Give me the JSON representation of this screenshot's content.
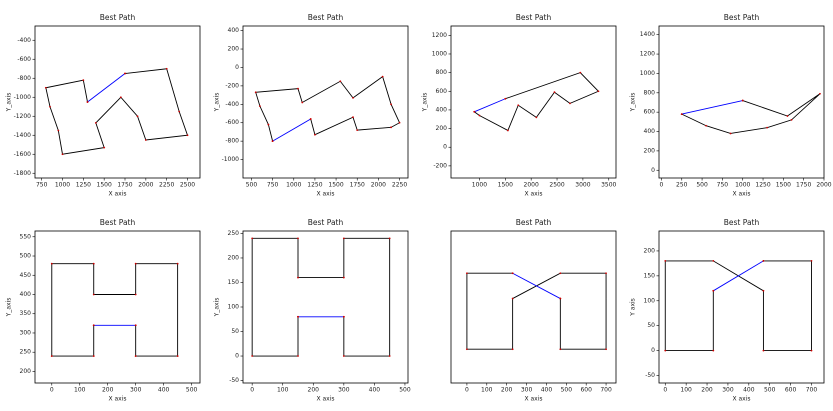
{
  "chart_data": [
    {
      "type": "line",
      "title": "Best Path",
      "xlabel": "X axis",
      "ylabel": "Y_axis",
      "xlim": [
        670,
        2650
      ],
      "ylim": [
        -1850,
        -250
      ],
      "xticks": [
        750,
        1000,
        1250,
        1500,
        1750,
        2000,
        2250,
        2500
      ],
      "yticks": [
        -400,
        -600,
        -800,
        -1000,
        -1200,
        -1400,
        -1600,
        -1800
      ],
      "marker_color": "#cc0000",
      "series": [
        {
          "color": "#000000",
          "x": [
            1300,
            1250,
            800,
            850,
            950,
            1000,
            1500,
            1400,
            1700,
            1900,
            2000,
            2500,
            2400,
            2250,
            1750
          ],
          "values": [
            -1050,
            -820,
            -900,
            -1100,
            -1350,
            -1600,
            -1530,
            -1270,
            -1000,
            -1200,
            -1450,
            -1400,
            -1150,
            -700,
            -750
          ]
        },
        {
          "color": "#0000ff",
          "x": [
            1750,
            1300
          ],
          "values": [
            -750,
            -1050
          ]
        }
      ]
    },
    {
      "type": "line",
      "title": "Best Path",
      "xlabel": "X axis",
      "ylabel": "Y_axis",
      "xlim": [
        400,
        2350
      ],
      "ylim": [
        -1200,
        450
      ],
      "xticks": [
        500,
        750,
        1000,
        1250,
        1500,
        1750,
        2000,
        2250
      ],
      "yticks": [
        400,
        200,
        0,
        -200,
        -400,
        -600,
        -800,
        -1000
      ],
      "marker_color": "#cc0000",
      "series": [
        {
          "color": "#000000",
          "x": [
            1200,
            1250,
            1700,
            1750,
            2150,
            2250,
            2150,
            2050,
            1700,
            1550,
            1100,
            1050,
            550,
            600,
            700,
            750
          ],
          "values": [
            -560,
            -730,
            -540,
            -680,
            -650,
            -600,
            -400,
            -100,
            -330,
            -150,
            -380,
            -230,
            -270,
            -420,
            -620,
            -800
          ]
        },
        {
          "color": "#0000ff",
          "x": [
            750,
            1200
          ],
          "values": [
            -800,
            -560
          ]
        }
      ]
    },
    {
      "type": "line",
      "title": "Best Path",
      "xlabel": "X axis",
      "ylabel": "Y_axis",
      "xlim": [
        450,
        3640
      ],
      "ylim": [
        -330,
        1300
      ],
      "xticks": [
        1000,
        1500,
        2000,
        2500,
        3000,
        3500
      ],
      "yticks": [
        -200,
        0,
        200,
        400,
        600,
        800,
        1000,
        1200
      ],
      "marker_color": "#cc0000",
      "series": [
        {
          "color": "#000000",
          "x": [
            1500,
            2950,
            3300,
            2750,
            2450,
            2100,
            1750,
            1550,
            1000,
            900
          ],
          "values": [
            520,
            800,
            600,
            470,
            590,
            320,
            450,
            180,
            340,
            380
          ]
        },
        {
          "color": "#0000ff",
          "x": [
            900,
            1500
          ],
          "values": [
            380,
            520
          ]
        }
      ]
    },
    {
      "type": "line",
      "title": "Best Path",
      "xlabel": "X axis",
      "ylabel": "Y_axis",
      "xlim": [
        -30,
        2000
      ],
      "ylim": [
        -80,
        1490
      ],
      "xticks": [
        0,
        250,
        500,
        750,
        1000,
        1250,
        1500,
        1750,
        2000
      ],
      "yticks": [
        0,
        200,
        400,
        600,
        800,
        1000,
        1200,
        1400
      ],
      "marker_color": "#cc0000",
      "series": [
        {
          "color": "#000000",
          "x": [
            1000,
            1550,
            1950,
            1600,
            1300,
            850,
            550,
            250
          ],
          "values": [
            720,
            560,
            790,
            520,
            440,
            380,
            460,
            580
          ]
        },
        {
          "color": "#0000ff",
          "x": [
            250,
            1000
          ],
          "values": [
            580,
            720
          ]
        }
      ]
    },
    {
      "type": "line",
      "title": "Best Path",
      "xlabel": "X axis",
      "ylabel": "Y_axis",
      "xlim": [
        -60,
        530
      ],
      "ylim": [
        170,
        565
      ],
      "xticks": [
        0,
        100,
        200,
        300,
        400,
        500
      ],
      "yticks": [
        200,
        250,
        300,
        350,
        400,
        450,
        500,
        550
      ],
      "marker_color": "#cc0000",
      "series": [
        {
          "color": "#000000",
          "x": [
            150,
            150,
            0,
            0,
            150,
            150,
            300,
            300,
            450,
            450,
            300,
            300
          ],
          "values": [
            320,
            240,
            240,
            480,
            480,
            400,
            400,
            480,
            480,
            240,
            240,
            320
          ]
        },
        {
          "color": "#0000ff",
          "x": [
            300,
            150
          ],
          "values": [
            320,
            320
          ]
        }
      ]
    },
    {
      "type": "line",
      "title": "Best Path",
      "xlabel": "X axis",
      "ylabel": "Y_axis",
      "xlim": [
        -30,
        510
      ],
      "ylim": [
        -55,
        255
      ],
      "xticks": [
        0,
        100,
        200,
        300,
        400,
        500
      ],
      "yticks": [
        -50,
        0,
        50,
        100,
        150,
        200,
        250
      ],
      "marker_color": "#cc0000",
      "series": [
        {
          "color": "#000000",
          "x": [
            150,
            150,
            0,
            0,
            150,
            150,
            300,
            300,
            450,
            450,
            300,
            300
          ],
          "values": [
            80,
            0,
            0,
            240,
            240,
            160,
            160,
            240,
            240,
            0,
            0,
            80
          ]
        },
        {
          "color": "#0000ff",
          "x": [
            300,
            150
          ],
          "values": [
            80,
            80
          ]
        }
      ]
    },
    {
      "type": "line",
      "title": "Best Path",
      "xlabel": "X axis",
      "xlim": [
        -80,
        750
      ],
      "ylim": [
        -80,
        280
      ],
      "xticks": [
        0,
        100,
        200,
        300,
        400,
        500,
        600,
        700
      ],
      "marker_color": "#cc0000",
      "series": [
        {
          "color": "#000000",
          "x": [
            470,
            470,
            700,
            700,
            470,
            230,
            230,
            0,
            0,
            230
          ],
          "values": [
            120,
            0,
            0,
            180,
            180,
            120,
            0,
            0,
            180,
            180
          ]
        },
        {
          "color": "#0000ff",
          "x": [
            230,
            470
          ],
          "values": [
            180,
            120
          ]
        }
      ]
    },
    {
      "type": "line",
      "title": "Best Path",
      "xlabel": "X axis",
      "ylabel": "Y axis",
      "xlim": [
        -30,
        760
      ],
      "ylim": [
        -65,
        240
      ],
      "xticks": [
        0,
        100,
        200,
        300,
        400,
        500,
        600,
        700
      ],
      "yticks": [
        -50,
        0,
        50,
        100,
        150,
        200
      ],
      "marker_color": "#cc0000",
      "series": [
        {
          "color": "#000000",
          "x": [
            470,
            700,
            700,
            470,
            470,
            230,
            0,
            0,
            230,
            230
          ],
          "values": [
            180,
            180,
            0,
            0,
            120,
            180,
            180,
            0,
            0,
            120
          ]
        },
        {
          "color": "#0000ff",
          "x": [
            230,
            470
          ],
          "values": [
            120,
            180
          ]
        }
      ]
    }
  ]
}
